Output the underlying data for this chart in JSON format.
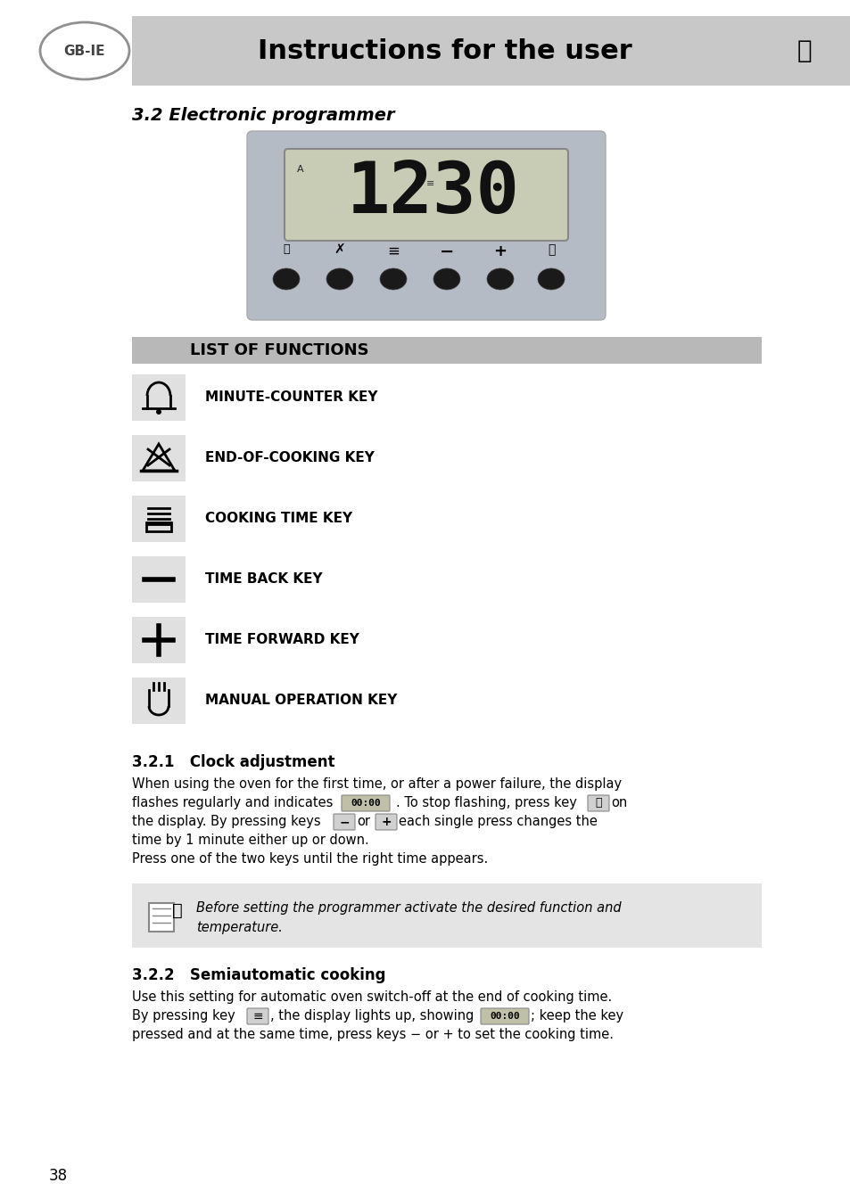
{
  "page_bg": "#ffffff",
  "header_bg": "#c8c8c8",
  "header_text": "Instructions for the user",
  "header_text_color": "#000000",
  "header_fontsize": 22,
  "gbie_text": "GB-IE",
  "section_title": "3.2 Electronic programmer",
  "functions_bar_bg": "#b8b8b8",
  "functions_bar_text": "LIST OF FUNCTIONS",
  "functions": [
    {
      "label": "MINUTE-COUNTER KEY",
      "type": "bell"
    },
    {
      "label": "END-OF-COOKING KEY",
      "type": "endcook"
    },
    {
      "label": "COOKING TIME KEY",
      "type": "cooktime"
    },
    {
      "label": "TIME BACK KEY",
      "type": "minus"
    },
    {
      "label": "TIME FORWARD KEY",
      "type": "plus"
    },
    {
      "label": "MANUAL OPERATION KEY",
      "type": "hand"
    }
  ],
  "subsection_321_title": "3.2.1   Clock adjustment",
  "note_bg": "#e4e4e4",
  "note_text1": "Before setting the programmer activate the desired function and",
  "note_text2": "temperature.",
  "subsection_322_title": "3.2.2   Semiautomatic cooking",
  "page_number": "38",
  "panel_bg": "#b5bbc5",
  "lcd_bg": "#c8ccb4",
  "inline_lcd_bg": "#c0c0a8",
  "inline_key_bg": "#d0d0d0"
}
